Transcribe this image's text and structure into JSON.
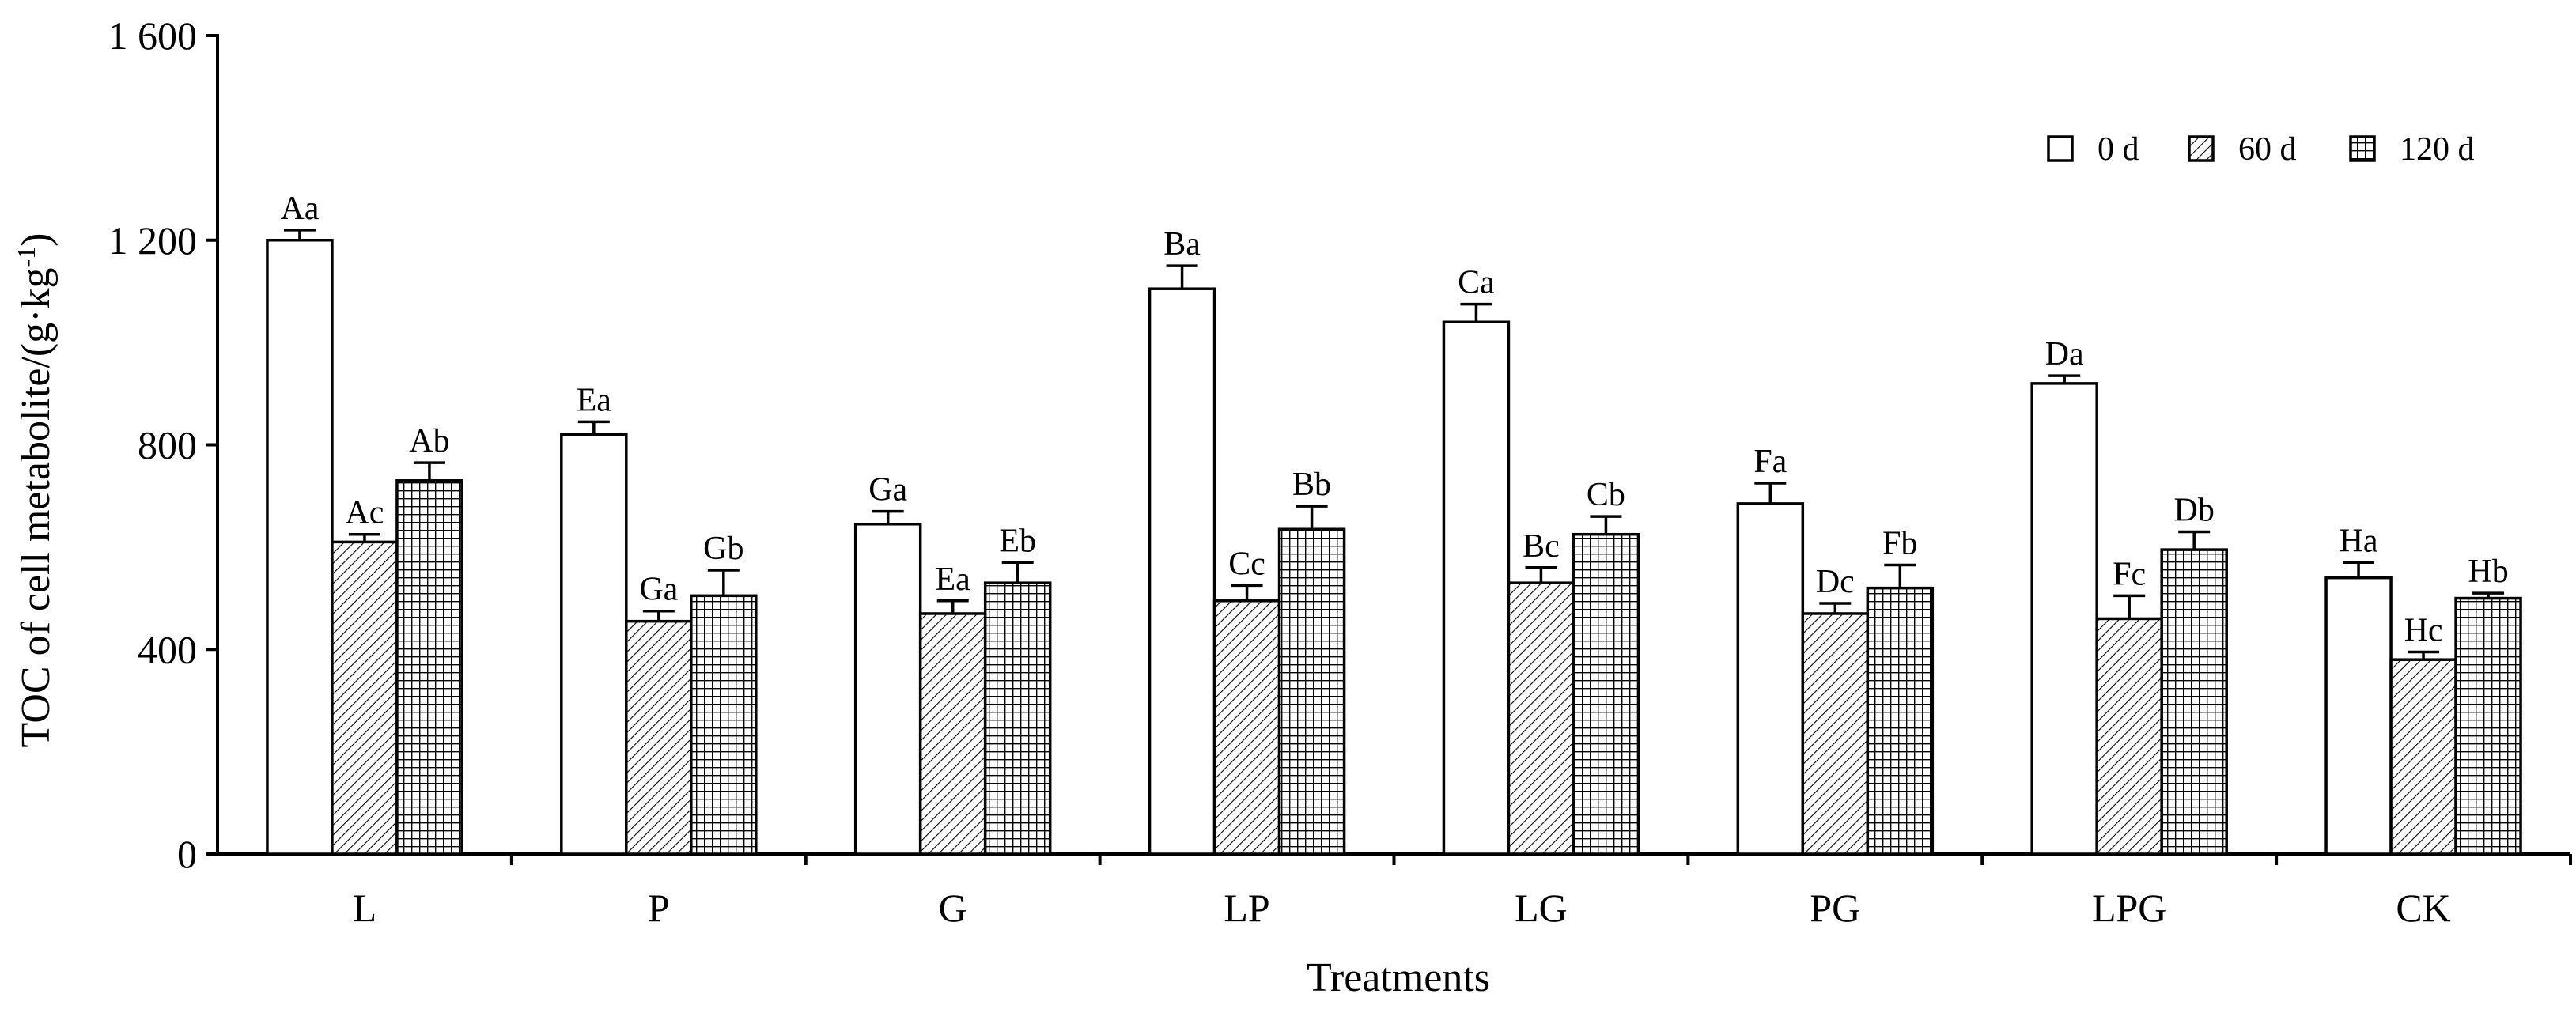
{
  "chart_data": {
    "type": "bar",
    "title": "",
    "xlabel": "Treatments",
    "ylabel_main": "TOC of cell metabolite/(g·kg",
    "ylabel_sup": "-1",
    "ylabel_close": ")",
    "ylim": [
      0,
      1600
    ],
    "yticks": [
      0,
      400,
      800,
      1200,
      1600
    ],
    "ytick_labels": [
      "0",
      "400",
      "800",
      "1 200",
      "1 600"
    ],
    "categories": [
      "L",
      "P",
      "G",
      "LP",
      "LG",
      "PG",
      "LPG",
      "CK"
    ],
    "legend_position": "top-right",
    "grid": false,
    "series": [
      {
        "name": "0 d",
        "pattern": "blank",
        "values": [
          1200,
          820,
          645,
          1105,
          1040,
          685,
          920,
          540
        ],
        "errors": [
          20,
          25,
          25,
          45,
          35,
          40,
          15,
          30
        ],
        "labels": [
          "Aa",
          "Ea",
          "Ga",
          "Ba",
          "Ca",
          "Fa",
          "Da",
          "Ha"
        ]
      },
      {
        "name": "60 d",
        "pattern": "diagonal",
        "values": [
          610,
          455,
          470,
          495,
          530,
          470,
          460,
          380
        ],
        "errors": [
          15,
          20,
          25,
          30,
          30,
          20,
          45,
          15
        ],
        "labels": [
          "Ac",
          "Ga",
          "Ea",
          "Cc",
          "Bc",
          "Dc",
          "Fc",
          "Hc"
        ]
      },
      {
        "name": "120 d",
        "pattern": "grid",
        "values": [
          730,
          505,
          530,
          635,
          625,
          520,
          595,
          500
        ],
        "errors": [
          35,
          50,
          40,
          45,
          35,
          45,
          35,
          10
        ],
        "labels": [
          "Ab",
          "Gb",
          "Eb",
          "Bb",
          "Cb",
          "Fb",
          "Db",
          "Hb"
        ]
      }
    ]
  }
}
